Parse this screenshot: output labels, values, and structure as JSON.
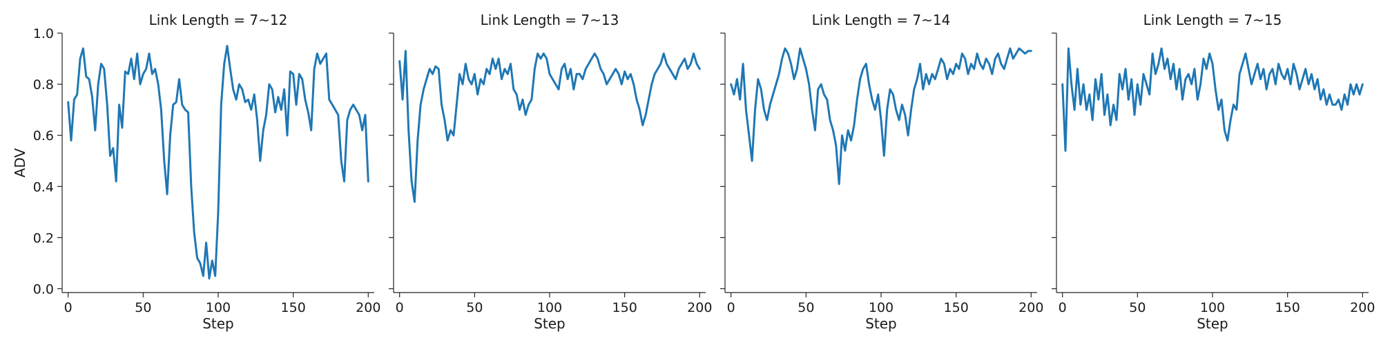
{
  "chart_data": [
    {
      "type": "line",
      "title": "Link Length = 7~12",
      "xlabel": "Step",
      "ylabel": "ADV",
      "xlim": [
        -4,
        204
      ],
      "ylim": [
        -0.015,
        1.0
      ],
      "xticks": [
        0,
        50,
        100,
        150,
        200
      ],
      "yticks": [
        0.0,
        0.2,
        0.4,
        0.6,
        0.8,
        1.0
      ],
      "grid": false,
      "series": [
        {
          "color": "#1f77b4",
          "x": [
            0,
            2,
            4,
            6,
            8,
            10,
            12,
            14,
            16,
            18,
            20,
            22,
            24,
            26,
            28,
            30,
            32,
            34,
            36,
            38,
            40,
            42,
            44,
            46,
            48,
            50,
            52,
            54,
            56,
            58,
            60,
            62,
            64,
            66,
            68,
            70,
            72,
            74,
            76,
            78,
            80,
            82,
            84,
            86,
            88,
            90,
            92,
            94,
            96,
            98,
            100,
            102,
            104,
            106,
            108,
            110,
            112,
            114,
            116,
            118,
            120,
            122,
            124,
            126,
            128,
            130,
            132,
            134,
            136,
            138,
            140,
            142,
            144,
            146,
            148,
            150,
            152,
            154,
            156,
            158,
            160,
            162,
            164,
            166,
            168,
            170,
            172,
            174,
            176,
            178,
            180,
            182,
            184,
            186,
            188,
            190,
            192,
            194,
            196,
            198,
            200
          ],
          "y": [
            0.73,
            0.58,
            0.74,
            0.76,
            0.9,
            0.94,
            0.83,
            0.82,
            0.75,
            0.62,
            0.8,
            0.88,
            0.86,
            0.72,
            0.52,
            0.55,
            0.42,
            0.72,
            0.63,
            0.85,
            0.84,
            0.9,
            0.82,
            0.92,
            0.8,
            0.84,
            0.86,
            0.92,
            0.84,
            0.86,
            0.8,
            0.7,
            0.5,
            0.37,
            0.6,
            0.72,
            0.73,
            0.82,
            0.72,
            0.7,
            0.69,
            0.4,
            0.22,
            0.12,
            0.1,
            0.05,
            0.18,
            0.04,
            0.11,
            0.05,
            0.3,
            0.72,
            0.88,
            0.95,
            0.86,
            0.78,
            0.74,
            0.8,
            0.78,
            0.73,
            0.74,
            0.7,
            0.76,
            0.66,
            0.5,
            0.62,
            0.68,
            0.8,
            0.78,
            0.69,
            0.75,
            0.7,
            0.78,
            0.6,
            0.85,
            0.84,
            0.72,
            0.84,
            0.82,
            0.74,
            0.69,
            0.62,
            0.86,
            0.92,
            0.88,
            0.9,
            0.92,
            0.74,
            0.72,
            0.7,
            0.68,
            0.5,
            0.42,
            0.66,
            0.7,
            0.72,
            0.7,
            0.68,
            0.62,
            0.68,
            0.42
          ]
        }
      ]
    },
    {
      "type": "line",
      "title": "Link Length = 7~13",
      "xlabel": "Step",
      "ylabel": "",
      "xlim": [
        -4,
        204
      ],
      "ylim": [
        -0.015,
        1.0
      ],
      "xticks": [
        0,
        50,
        100,
        150,
        200
      ],
      "yticks": [
        0.0,
        0.2,
        0.4,
        0.6,
        0.8,
        1.0
      ],
      "grid": false,
      "series": [
        {
          "color": "#1f77b4",
          "x": [
            0,
            2,
            4,
            6,
            8,
            10,
            12,
            14,
            16,
            18,
            20,
            22,
            24,
            26,
            28,
            30,
            32,
            34,
            36,
            38,
            40,
            42,
            44,
            46,
            48,
            50,
            52,
            54,
            56,
            58,
            60,
            62,
            64,
            66,
            68,
            70,
            72,
            74,
            76,
            78,
            80,
            82,
            84,
            86,
            88,
            90,
            92,
            94,
            96,
            98,
            100,
            102,
            104,
            106,
            108,
            110,
            112,
            114,
            116,
            118,
            120,
            122,
            124,
            126,
            128,
            130,
            132,
            134,
            136,
            138,
            140,
            142,
            144,
            146,
            148,
            150,
            152,
            154,
            156,
            158,
            160,
            162,
            164,
            166,
            168,
            170,
            172,
            174,
            176,
            178,
            180,
            182,
            184,
            186,
            188,
            190,
            192,
            194,
            196,
            198,
            200
          ],
          "y": [
            0.89,
            0.74,
            0.93,
            0.62,
            0.42,
            0.34,
            0.58,
            0.72,
            0.78,
            0.82,
            0.86,
            0.84,
            0.87,
            0.86,
            0.72,
            0.66,
            0.58,
            0.62,
            0.6,
            0.72,
            0.84,
            0.8,
            0.88,
            0.82,
            0.8,
            0.84,
            0.76,
            0.82,
            0.8,
            0.86,
            0.84,
            0.9,
            0.86,
            0.9,
            0.82,
            0.86,
            0.84,
            0.88,
            0.78,
            0.76,
            0.7,
            0.74,
            0.68,
            0.72,
            0.74,
            0.86,
            0.92,
            0.9,
            0.92,
            0.9,
            0.84,
            0.82,
            0.8,
            0.78,
            0.86,
            0.88,
            0.82,
            0.86,
            0.78,
            0.84,
            0.84,
            0.82,
            0.86,
            0.88,
            0.9,
            0.92,
            0.9,
            0.86,
            0.84,
            0.8,
            0.82,
            0.84,
            0.86,
            0.84,
            0.8,
            0.85,
            0.82,
            0.84,
            0.8,
            0.74,
            0.7,
            0.64,
            0.68,
            0.74,
            0.8,
            0.84,
            0.86,
            0.88,
            0.92,
            0.88,
            0.86,
            0.84,
            0.82,
            0.86,
            0.88,
            0.9,
            0.86,
            0.88,
            0.92,
            0.88,
            0.86
          ]
        }
      ]
    },
    {
      "type": "line",
      "title": "Link Length = 7~14",
      "xlabel": "Step",
      "ylabel": "",
      "xlim": [
        -4,
        204
      ],
      "ylim": [
        -0.015,
        1.0
      ],
      "xticks": [
        0,
        50,
        100,
        150,
        200
      ],
      "yticks": [
        0.0,
        0.2,
        0.4,
        0.6,
        0.8,
        1.0
      ],
      "grid": false,
      "series": [
        {
          "color": "#1f77b4",
          "x": [
            0,
            2,
            4,
            6,
            8,
            10,
            12,
            14,
            16,
            18,
            20,
            22,
            24,
            26,
            28,
            30,
            32,
            34,
            36,
            38,
            40,
            42,
            44,
            46,
            48,
            50,
            52,
            54,
            56,
            58,
            60,
            62,
            64,
            66,
            68,
            70,
            72,
            74,
            76,
            78,
            80,
            82,
            84,
            86,
            88,
            90,
            92,
            94,
            96,
            98,
            100,
            102,
            104,
            106,
            108,
            110,
            112,
            114,
            116,
            118,
            120,
            122,
            124,
            126,
            128,
            130,
            132,
            134,
            136,
            138,
            140,
            142,
            144,
            146,
            148,
            150,
            152,
            154,
            156,
            158,
            160,
            162,
            164,
            166,
            168,
            170,
            172,
            174,
            176,
            178,
            180,
            182,
            184,
            186,
            188,
            190,
            192,
            194,
            196,
            198,
            200
          ],
          "y": [
            0.8,
            0.76,
            0.82,
            0.74,
            0.88,
            0.7,
            0.6,
            0.5,
            0.7,
            0.82,
            0.78,
            0.7,
            0.66,
            0.72,
            0.76,
            0.8,
            0.84,
            0.9,
            0.94,
            0.92,
            0.88,
            0.82,
            0.86,
            0.94,
            0.9,
            0.86,
            0.8,
            0.7,
            0.62,
            0.78,
            0.8,
            0.76,
            0.74,
            0.66,
            0.62,
            0.56,
            0.41,
            0.6,
            0.54,
            0.62,
            0.58,
            0.64,
            0.74,
            0.82,
            0.86,
            0.88,
            0.8,
            0.74,
            0.7,
            0.76,
            0.66,
            0.52,
            0.7,
            0.78,
            0.76,
            0.7,
            0.66,
            0.72,
            0.68,
            0.6,
            0.7,
            0.78,
            0.82,
            0.88,
            0.78,
            0.84,
            0.8,
            0.84,
            0.82,
            0.86,
            0.9,
            0.88,
            0.82,
            0.86,
            0.84,
            0.88,
            0.86,
            0.92,
            0.9,
            0.84,
            0.88,
            0.86,
            0.92,
            0.88,
            0.86,
            0.9,
            0.88,
            0.84,
            0.9,
            0.92,
            0.88,
            0.86,
            0.9,
            0.94,
            0.9,
            0.92,
            0.94,
            0.93,
            0.92,
            0.93,
            0.93
          ]
        }
      ]
    },
    {
      "type": "line",
      "title": "Link Length = 7~15",
      "xlabel": "Step",
      "ylabel": "",
      "xlim": [
        -4,
        204
      ],
      "ylim": [
        -0.015,
        1.0
      ],
      "xticks": [
        0,
        50,
        100,
        150,
        200
      ],
      "yticks": [
        0.0,
        0.2,
        0.4,
        0.6,
        0.8,
        1.0
      ],
      "grid": false,
      "series": [
        {
          "color": "#1f77b4",
          "x": [
            0,
            2,
            4,
            6,
            8,
            10,
            12,
            14,
            16,
            18,
            20,
            22,
            24,
            26,
            28,
            30,
            32,
            34,
            36,
            38,
            40,
            42,
            44,
            46,
            48,
            50,
            52,
            54,
            56,
            58,
            60,
            62,
            64,
            66,
            68,
            70,
            72,
            74,
            76,
            78,
            80,
            82,
            84,
            86,
            88,
            90,
            92,
            94,
            96,
            98,
            100,
            102,
            104,
            106,
            108,
            110,
            112,
            114,
            116,
            118,
            120,
            122,
            124,
            126,
            128,
            130,
            132,
            134,
            136,
            138,
            140,
            142,
            144,
            146,
            148,
            150,
            152,
            154,
            156,
            158,
            160,
            162,
            164,
            166,
            168,
            170,
            172,
            174,
            176,
            178,
            180,
            182,
            184,
            186,
            188,
            190,
            192,
            194,
            196,
            198,
            200
          ],
          "y": [
            0.8,
            0.54,
            0.94,
            0.8,
            0.7,
            0.86,
            0.72,
            0.8,
            0.7,
            0.76,
            0.66,
            0.82,
            0.74,
            0.84,
            0.68,
            0.76,
            0.64,
            0.72,
            0.66,
            0.84,
            0.78,
            0.86,
            0.74,
            0.82,
            0.68,
            0.8,
            0.72,
            0.84,
            0.8,
            0.76,
            0.92,
            0.84,
            0.88,
            0.94,
            0.86,
            0.9,
            0.82,
            0.88,
            0.78,
            0.86,
            0.74,
            0.82,
            0.84,
            0.8,
            0.86,
            0.74,
            0.8,
            0.9,
            0.86,
            0.92,
            0.88,
            0.78,
            0.7,
            0.74,
            0.62,
            0.58,
            0.66,
            0.72,
            0.7,
            0.84,
            0.88,
            0.92,
            0.86,
            0.8,
            0.84,
            0.88,
            0.82,
            0.86,
            0.78,
            0.84,
            0.86,
            0.8,
            0.88,
            0.84,
            0.82,
            0.86,
            0.8,
            0.88,
            0.84,
            0.78,
            0.82,
            0.86,
            0.8,
            0.84,
            0.78,
            0.82,
            0.74,
            0.78,
            0.72,
            0.76,
            0.72,
            0.72,
            0.74,
            0.7,
            0.76,
            0.72,
            0.8,
            0.76,
            0.8,
            0.76,
            0.8
          ]
        }
      ]
    }
  ]
}
